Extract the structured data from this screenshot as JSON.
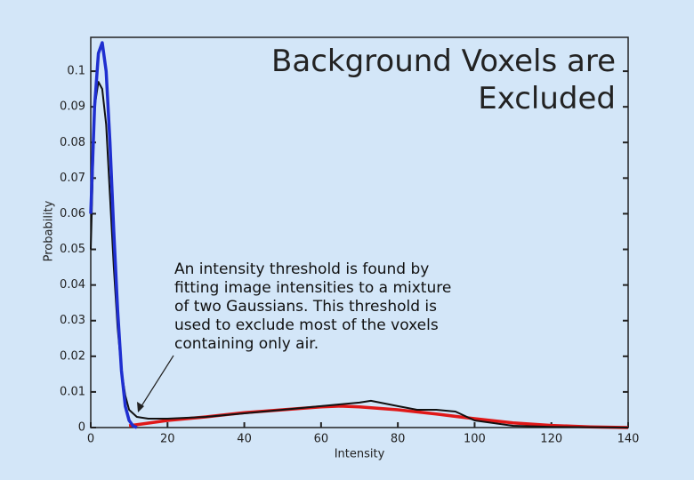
{
  "chart_data": {
    "type": "line",
    "title": "Background Voxels are Excluded",
    "annotation": "An intensity threshold is found by fitting image intensities to a mixture of two Gaussians.  This threshold is used to exclude most of the voxels containing only air.",
    "x_label": "Intensity",
    "y_label": "Probability",
    "xlim": [
      0,
      140
    ],
    "ylim": [
      0,
      0.1095
    ],
    "xticks": [
      0,
      20,
      40,
      60,
      80,
      100,
      120,
      140
    ],
    "yticks": [
      0,
      0.01,
      0.02,
      0.03,
      0.04,
      0.05,
      0.06,
      0.07,
      0.08,
      0.09,
      0.1
    ],
    "grid": false,
    "series": [
      {
        "color": "#111111",
        "x": [
          0,
          1,
          2,
          3,
          4,
          5,
          6,
          7,
          8,
          9,
          10,
          12,
          15,
          20,
          30,
          40,
          50,
          60,
          70,
          73,
          80,
          85,
          90,
          95,
          100,
          110,
          120,
          140
        ],
        "values": [
          0.05,
          0.09,
          0.097,
          0.095,
          0.085,
          0.065,
          0.045,
          0.028,
          0.016,
          0.009,
          0.005,
          0.003,
          0.0025,
          0.0025,
          0.003,
          0.004,
          0.005,
          0.006,
          0.007,
          0.0075,
          0.006,
          0.005,
          0.005,
          0.0045,
          0.002,
          0.0005,
          0.0002,
          0
        ]
      },
      {
        "color": "#1f2fd0",
        "x": [
          0,
          1,
          2,
          3,
          4,
          5,
          6,
          7,
          8,
          9,
          10,
          11,
          12
        ],
        "values": [
          0.06,
          0.09,
          0.105,
          0.108,
          0.1,
          0.08,
          0.055,
          0.033,
          0.016,
          0.006,
          0.002,
          0.0005,
          0
        ]
      },
      {
        "color": "#e01818",
        "x": [
          10,
          20,
          30,
          40,
          50,
          60,
          65,
          70,
          80,
          90,
          100,
          110,
          120,
          130,
          140
        ],
        "values": [
          0.0005,
          0.002,
          0.003,
          0.0042,
          0.005,
          0.0058,
          0.006,
          0.0058,
          0.005,
          0.0038,
          0.0025,
          0.0013,
          0.0006,
          0.0002,
          0
        ]
      }
    ]
  }
}
